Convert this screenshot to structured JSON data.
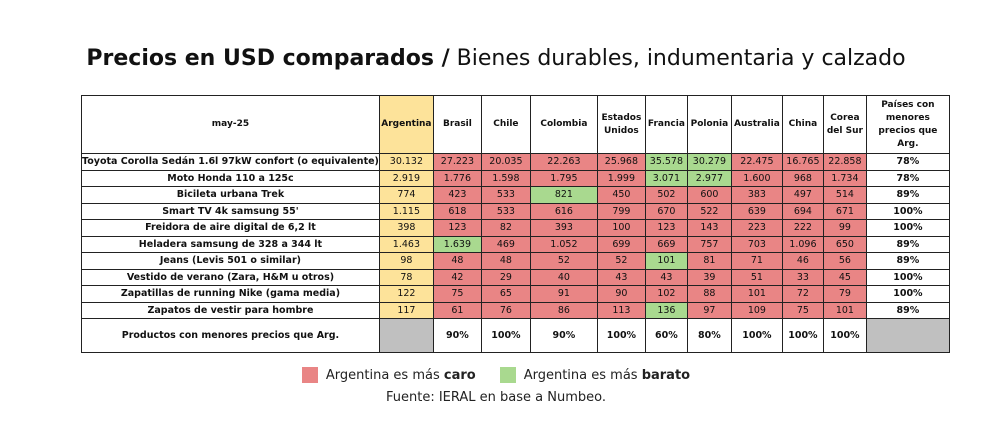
{
  "chart_data": {
    "type": "table",
    "title_bold": "Precios en USD comparados /",
    "title_rest": " Bienes durables, indumentaria y calzado",
    "corner": "may-25",
    "columns": [
      "Argentina",
      "Brasil",
      "Chile",
      "Colombia",
      "Estados Unidos",
      "Francia",
      "Polonia",
      "Australia",
      "China",
      "Corea del Sur"
    ],
    "last_column": "Países con menores precios que Arg.",
    "rows": [
      {
        "label": "Toyota Corolla Sedán 1.6l 97kW confort (o equivalente)",
        "values": [
          "30.132",
          "27.223",
          "20.035",
          "22.263",
          "25.968",
          "35.578",
          "30.279",
          "22.475",
          "16.765",
          "22.858"
        ],
        "share": "78%"
      },
      {
        "label": "Moto Honda 110 a 125c",
        "values": [
          "2.919",
          "1.776",
          "1.598",
          "1.795",
          "1.999",
          "3.071",
          "2.977",
          "1.600",
          "968",
          "1.734"
        ],
        "share": "78%"
      },
      {
        "label": "Bicileta urbana Trek",
        "values": [
          "774",
          "423",
          "533",
          "821",
          "450",
          "502",
          "600",
          "383",
          "497",
          "514"
        ],
        "share": "89%"
      },
      {
        "label": "Smart TV 4k samsung 55'",
        "values": [
          "1.115",
          "618",
          "533",
          "616",
          "799",
          "670",
          "522",
          "639",
          "694",
          "671"
        ],
        "share": "100%"
      },
      {
        "label": "Freidora de aire digital de 6,2 lt",
        "values": [
          "398",
          "123",
          "82",
          "393",
          "100",
          "123",
          "143",
          "223",
          "222",
          "99"
        ],
        "share": "100%"
      },
      {
        "label": "Heladera samsung de 328 a 344 lt",
        "values": [
          "1.463",
          "1.639",
          "469",
          "1.052",
          "699",
          "669",
          "757",
          "703",
          "1.096",
          "650"
        ],
        "share": "89%"
      },
      {
        "label": "Jeans (Levis 501 o similar)",
        "values": [
          "98",
          "48",
          "48",
          "52",
          "52",
          "101",
          "81",
          "71",
          "46",
          "56"
        ],
        "share": "89%"
      },
      {
        "label": "Vestido de verano (Zara, H&M u otros)",
        "values": [
          "78",
          "42",
          "29",
          "40",
          "43",
          "43",
          "39",
          "51",
          "33",
          "45"
        ],
        "share": "100%"
      },
      {
        "label": "Zapatillas de running Nike (gama media)",
        "values": [
          "122",
          "75",
          "65",
          "91",
          "90",
          "102",
          "88",
          "101",
          "72",
          "79"
        ],
        "share": "100%"
      },
      {
        "label": "Zapatos de vestir para hombre",
        "values": [
          "117",
          "61",
          "76",
          "86",
          "113",
          "136",
          "97",
          "109",
          "75",
          "101"
        ],
        "share": "89%"
      }
    ],
    "footer_label": "Productos con menores precios que Arg.",
    "footer_values": [
      "90%",
      "100%",
      "90%",
      "100%",
      "60%",
      "80%",
      "100%",
      "100%",
      "100%"
    ],
    "legend": [
      {
        "text": "Argentina es más ",
        "bold": "caro",
        "color": "#e98585"
      },
      {
        "text": "Argentina es más ",
        "bold": "barato",
        "color": "#a9d98f"
      }
    ],
    "source": "Fuente: IERAL en base a Numbeo."
  }
}
